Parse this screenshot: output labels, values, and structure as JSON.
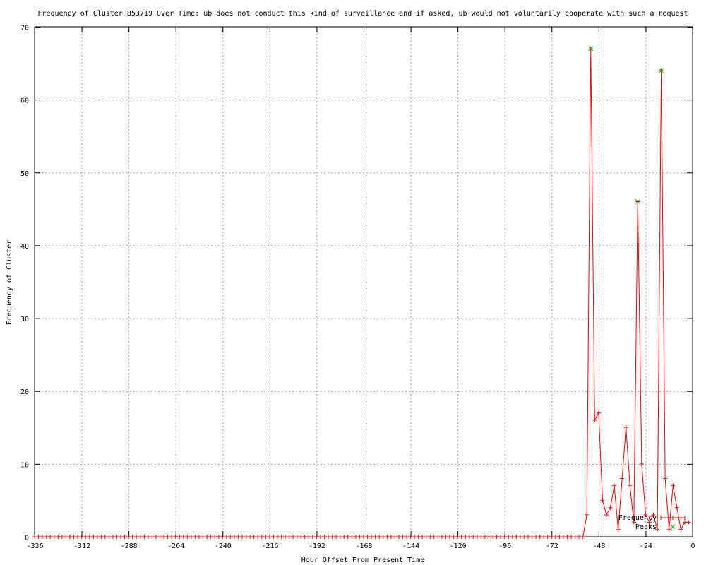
{
  "chart_data": {
    "type": "line",
    "title": "Frequency of Cluster 853719 Over Time: ub does not conduct this kind of surveillance and if asked, ub would not voluntarily cooperate with such a request",
    "xlabel": "Hour Offset From Present Time",
    "ylabel": "Frequency of Cluster",
    "xlim": [
      -336,
      0
    ],
    "ylim": [
      0,
      70
    ],
    "xticks": [
      -336,
      -312,
      -288,
      -264,
      -240,
      -216,
      -192,
      -168,
      -144,
      -120,
      -96,
      -72,
      -48,
      -24,
      0
    ],
    "yticks": [
      0,
      10,
      20,
      30,
      40,
      50,
      60,
      70
    ],
    "grid": true,
    "legend_placement": "bottom-right",
    "series": [
      {
        "name": "Frequency",
        "color": "#ff0000",
        "marker": "plus",
        "zero_before": -56,
        "points": [
          [
            -54,
            3
          ],
          [
            -52,
            67
          ],
          [
            -50,
            16
          ],
          [
            -48,
            17
          ],
          [
            -46,
            5
          ],
          [
            -44,
            3
          ],
          [
            -42,
            4
          ],
          [
            -40,
            7
          ],
          [
            -38,
            1
          ],
          [
            -36,
            8
          ],
          [
            -34,
            15
          ],
          [
            -32,
            7
          ],
          [
            -30,
            2
          ],
          [
            -28,
            46
          ],
          [
            -26,
            10
          ],
          [
            -24,
            3
          ],
          [
            -22,
            2
          ],
          [
            -20,
            3
          ],
          [
            -18,
            1
          ],
          [
            -16,
            64
          ],
          [
            -14,
            8
          ],
          [
            -12,
            1
          ],
          [
            -10,
            7
          ],
          [
            -8,
            4
          ],
          [
            -6,
            1
          ],
          [
            -4,
            2
          ],
          [
            -2,
            2
          ]
        ]
      },
      {
        "name": "Peaks",
        "color": "#00c000",
        "marker": "x",
        "points": [
          [
            -52,
            67
          ],
          [
            -28,
            46
          ],
          [
            -16,
            64
          ]
        ]
      }
    ]
  }
}
